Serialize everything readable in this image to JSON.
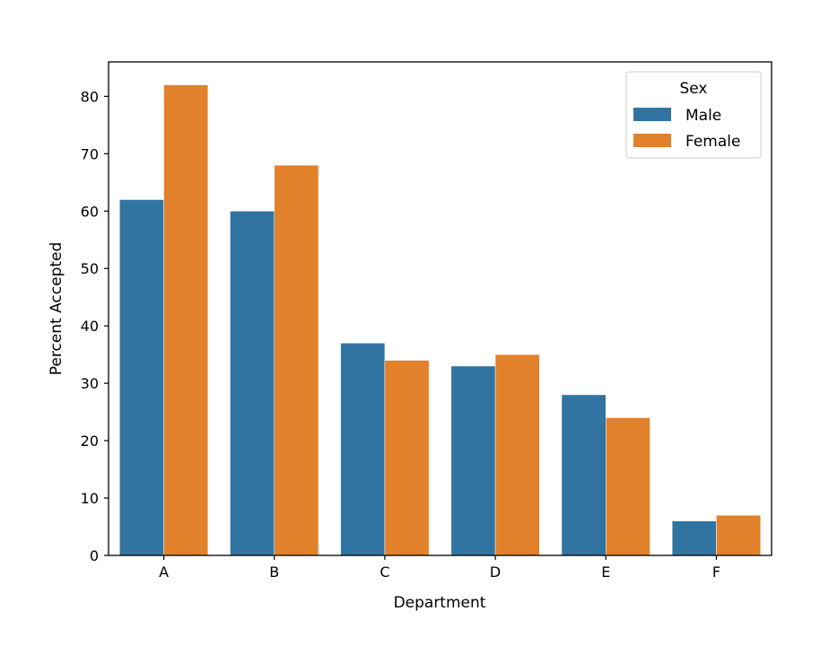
{
  "chart_data": {
    "type": "bar",
    "categories": [
      "A",
      "B",
      "C",
      "D",
      "E",
      "F"
    ],
    "series": [
      {
        "name": "Male",
        "color": "#3274a1",
        "values": [
          62,
          60,
          37,
          33,
          28,
          6
        ]
      },
      {
        "name": "Female",
        "color": "#e1812c",
        "values": [
          82,
          68,
          34,
          35,
          24,
          7
        ]
      }
    ],
    "xlabel": "Department",
    "ylabel": "Percent Accepted",
    "ylim": [
      0,
      86
    ],
    "yticks": [
      0,
      10,
      20,
      30,
      40,
      50,
      60,
      70,
      80
    ],
    "grid": false,
    "legend": {
      "title": "Sex",
      "placement": "top-right"
    }
  }
}
